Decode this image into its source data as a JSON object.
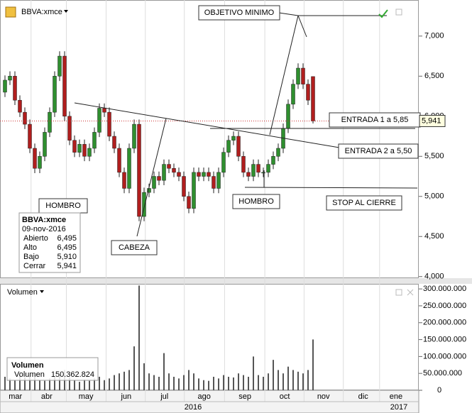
{
  "chart_data": {
    "type": "candlestick",
    "title": "BBVA:xmce",
    "open": [
      6300,
      6450,
      6500,
      6200,
      6050,
      5900,
      5600,
      5350,
      5500,
      5800,
      6050,
      6500,
      6750,
      6000,
      5700,
      5550,
      5650,
      5500,
      5600,
      5800,
      6100,
      6050,
      5750,
      5600,
      5300,
      5100,
      5600,
      5900,
      4750,
      5050,
      5100,
      5250,
      5200,
      5400,
      5350,
      5300,
      5250,
      5000,
      4850,
      5300,
      5250,
      5300,
      5250,
      5100,
      5300,
      5550,
      5700,
      5750,
      5500,
      5300,
      5250,
      5400,
      5300,
      5300,
      5400,
      5500,
      5600,
      5850,
      6150,
      6400,
      6600,
      6400,
      6495
    ],
    "high": [
      6510,
      6560,
      6560,
      6260,
      6110,
      5960,
      5660,
      5560,
      5860,
      6110,
      6560,
      6810,
      6810,
      6060,
      5760,
      5710,
      5710,
      5660,
      5860,
      6160,
      6160,
      6110,
      5810,
      5660,
      5360,
      5660,
      5960,
      5960,
      5110,
      5160,
      5310,
      5310,
      5460,
      5460,
      5410,
      5360,
      5310,
      5060,
      5360,
      5360,
      5360,
      5360,
      5310,
      5360,
      5610,
      5760,
      5810,
      5810,
      5560,
      5360,
      5460,
      5460,
      5360,
      5460,
      5560,
      5660,
      5910,
      6210,
      6460,
      6660,
      6660,
      6460,
      6495
    ],
    "low": [
      6240,
      6390,
      6140,
      5990,
      5840,
      5540,
      5290,
      5290,
      5440,
      5740,
      5990,
      6440,
      5940,
      5640,
      5490,
      5490,
      5440,
      5440,
      5540,
      5740,
      5990,
      5690,
      5540,
      5240,
      5040,
      5040,
      5540,
      4690,
      4690,
      4990,
      5040,
      5140,
      5140,
      5290,
      5240,
      5190,
      4940,
      4790,
      4790,
      5190,
      5190,
      5190,
      5040,
      5040,
      5240,
      5490,
      5640,
      5440,
      5240,
      5190,
      5190,
      5240,
      5240,
      5240,
      5340,
      5440,
      5540,
      5790,
      6090,
      6340,
      6340,
      6140,
      5910
    ],
    "close": [
      6450,
      6500,
      6200,
      6050,
      5900,
      5600,
      5350,
      5500,
      5800,
      6050,
      6500,
      6750,
      6000,
      5700,
      5550,
      5650,
      5500,
      5600,
      5800,
      6100,
      6050,
      5750,
      5600,
      5300,
      5100,
      5600,
      5900,
      4750,
      5050,
      5100,
      5250,
      5200,
      5400,
      5350,
      5300,
      5250,
      5000,
      4850,
      5300,
      5250,
      5300,
      5250,
      5100,
      5300,
      5550,
      5700,
      5750,
      5500,
      5300,
      5250,
      5400,
      5300,
      5300,
      5400,
      5500,
      5600,
      5850,
      6150,
      6400,
      6600,
      6400,
      6200,
      5941
    ],
    "up_color": "#2f8f2f",
    "down_color": "#b01e1e",
    "ylim": [
      3980,
      7450
    ],
    "yticks": [
      {
        "value": 4000,
        "label": "4,000"
      },
      {
        "value": 4500,
        "label": "4,500"
      },
      {
        "value": 5000,
        "label": "5,000"
      },
      {
        "value": 5500,
        "label": "5,500"
      },
      {
        "value": 6000,
        "label": "6,000"
      },
      {
        "value": 6500,
        "label": "6,500"
      },
      {
        "value": 7000,
        "label": "7,000"
      }
    ],
    "xlim": [
      -1,
      83
    ],
    "xticks": [
      {
        "value": 2.1,
        "label": "mar"
      },
      {
        "value": 8.4,
        "label": "abr"
      },
      {
        "value": 16.3,
        "label": "may"
      },
      {
        "value": 24.4,
        "label": "jun"
      },
      {
        "value": 32.1,
        "label": "jul"
      },
      {
        "value": 40.1,
        "label": "ago"
      },
      {
        "value": 48.3,
        "label": "sep"
      },
      {
        "value": 56.3,
        "label": "oct"
      },
      {
        "value": 64.1,
        "label": "nov"
      },
      {
        "value": 72.1,
        "label": "dic"
      },
      {
        "value": 78.7,
        "label": "ene"
      }
    ],
    "year_labels": [
      "2016",
      "2017"
    ],
    "last_price_label": "5,941",
    "annotations": [
      "OBJETIVO MINIMO",
      "HOMBRO",
      "CABEZA",
      "HOMBRO",
      "ENTRADA 1 a 5,85",
      "ENTRADA 2 a 5,50",
      "STOP AL CIERRE"
    ],
    "info": {
      "title": "BBVA:xmce",
      "date": "09-nov-2016",
      "rows": [
        [
          "Abierto",
          "6,495"
        ],
        [
          "Alto",
          "6,495"
        ],
        [
          "Bajo",
          "5,910"
        ],
        [
          "Cerrar",
          "5,941"
        ]
      ]
    },
    "volume": {
      "title": "Volumen",
      "legend_title": "Volumen",
      "legend_label": "Volumen",
      "legend_value": "150.362.824",
      "color": "#555555",
      "values": [
        40000000,
        35000000,
        30000000,
        45000000,
        38000000,
        42000000,
        50000000,
        30000000,
        28000000,
        35000000,
        40000000,
        45000000,
        60000000,
        38000000,
        30000000,
        25000000,
        32000000,
        28000000,
        35000000,
        40000000,
        30000000,
        35000000,
        45000000,
        50000000,
        55000000,
        60000000,
        130000000,
        310000000,
        80000000,
        50000000,
        45000000,
        40000000,
        110000000,
        50000000,
        40000000,
        35000000,
        45000000,
        60000000,
        50000000,
        35000000,
        30000000,
        28000000,
        40000000,
        35000000,
        45000000,
        40000000,
        38000000,
        50000000,
        45000000,
        40000000,
        100000000,
        45000000,
        40000000,
        50000000,
        90000000,
        60000000,
        50000000,
        70000000,
        60000000,
        55000000,
        50000000,
        60000000,
        150362824
      ],
      "ylim": [
        0,
        315000000
      ],
      "yticks": [
        0,
        {
          "value": 50000000,
          "label": "50.000.000"
        },
        {
          "value": 100000000,
          "label": "100.000.000"
        },
        {
          "value": 150000000,
          "label": "150.000.000"
        },
        {
          "value": 200000000,
          "label": "200.000.000"
        },
        {
          "value": 250000000,
          "label": "250.000.000"
        },
        {
          "value": 300000000,
          "label": "300.000.000"
        }
      ]
    }
  }
}
